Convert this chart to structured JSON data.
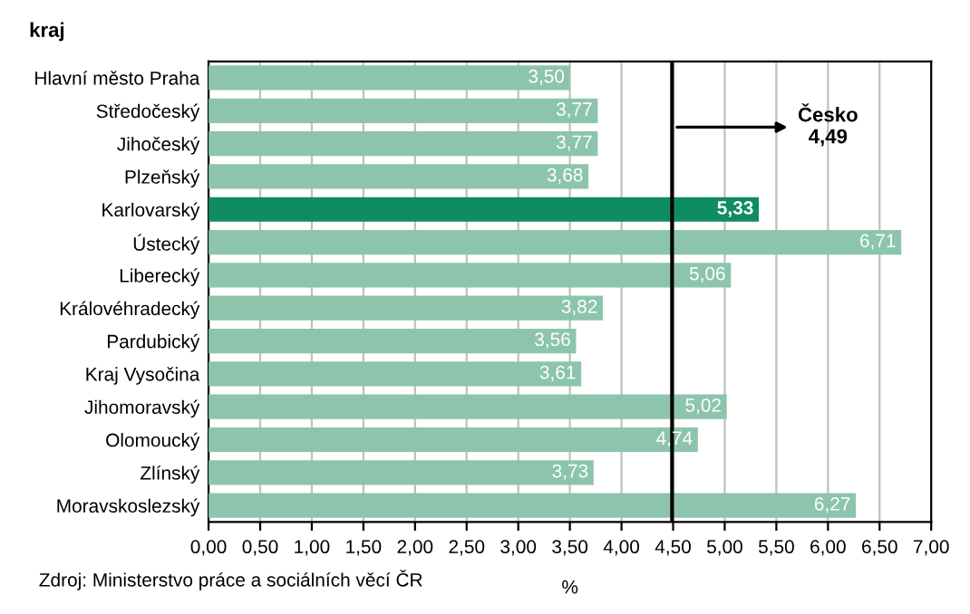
{
  "chart_data": {
    "type": "bar",
    "orientation": "horizontal",
    "ylabel": "kraj",
    "xlabel": "%",
    "categories": [
      "Hlavní město Praha",
      "Středočeský",
      "Jihočeský",
      "Plzeňský",
      "Karlovarský",
      "Ústecký",
      "Liberecký",
      "Královéhradecký",
      "Pardubický",
      "Kraj Vysočina",
      "Jihomoravský",
      "Olomoucký",
      "Zlínský",
      "Moravskoslezský"
    ],
    "values": [
      3.5,
      3.77,
      3.77,
      3.68,
      5.33,
      6.71,
      5.06,
      3.82,
      3.56,
      3.61,
      5.02,
      4.74,
      3.73,
      6.27
    ],
    "value_labels": [
      "3,50",
      "3,77",
      "3,77",
      "3,68",
      "5,33",
      "6,71",
      "5,06",
      "3,82",
      "3,56",
      "3,61",
      "5,02",
      "4,74",
      "3,73",
      "6,27"
    ],
    "colors": [
      "#8cc5ab",
      "#8cc5ab",
      "#8cc5ab",
      "#8cc5ab",
      "#0f8c62",
      "#8cc5ab",
      "#8cc5ab",
      "#8cc5ab",
      "#8cc5ab",
      "#8cc5ab",
      "#8cc5ab",
      "#8cc5ab",
      "#8cc5ab",
      "#8cc5ab"
    ],
    "xlim": [
      0,
      7
    ],
    "xticks": [
      {
        "value": 0,
        "label": "0,00"
      },
      {
        "value": 0.5,
        "label": "0,50"
      },
      {
        "value": 1,
        "label": "1,00"
      },
      {
        "value": 1.5,
        "label": "1,50"
      },
      {
        "value": 2,
        "label": "2,00"
      },
      {
        "value": 2.5,
        "label": "2,50"
      },
      {
        "value": 3,
        "label": "3,00"
      },
      {
        "value": 3.5,
        "label": "3,50"
      },
      {
        "value": 4,
        "label": "4,00"
      },
      {
        "value": 4.5,
        "label": "4,50"
      },
      {
        "value": 5,
        "label": "5,00"
      },
      {
        "value": 5.5,
        "label": "5,50"
      },
      {
        "value": 6,
        "label": "6,00"
      },
      {
        "value": 6.5,
        "label": "6,50"
      },
      {
        "value": 7,
        "label": "7,00"
      }
    ],
    "grid": "x",
    "ref_lines": [
      {
        "axis": "x",
        "value": 4.49,
        "label": "Česko\n4,49",
        "color": "#000000"
      }
    ],
    "annotations": [
      "Zdroj: Ministerstvo práce a sociálních věcí ČR"
    ]
  }
}
